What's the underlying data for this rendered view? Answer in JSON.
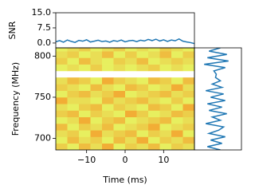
{
  "chart_data": [
    {
      "type": "line",
      "ylabel": "SNR",
      "color": "#1f77b4",
      "x": [
        -18,
        -17,
        -16,
        -15,
        -14,
        -13,
        -12,
        -11,
        -10,
        -9,
        -8,
        -7,
        -6,
        -5,
        -4,
        -3,
        -2,
        -1,
        0,
        1,
        2,
        3,
        4,
        5,
        6,
        7,
        8,
        9,
        10,
        11,
        12,
        13,
        14,
        15,
        16,
        17,
        18
      ],
      "values": [
        0.6,
        1.2,
        0.4,
        1.5,
        0.8,
        0.3,
        1.3,
        0.9,
        1.6,
        0.5,
        0.9,
        1.4,
        0.7,
        1.0,
        0.4,
        1.2,
        0.8,
        1.5,
        0.6,
        1.1,
        1.3,
        0.7,
        1.4,
        1.0,
        1.8,
        1.2,
        1.9,
        1.0,
        1.6,
        0.8,
        1.5,
        1.1,
        2.0,
        0.9,
        0.5,
        0.2,
        -0.3
      ],
      "xlim": [
        -18,
        18
      ],
      "ylim": [
        -2.4,
        15
      ],
      "yticks": [
        {
          "value": 0,
          "label": "0.0"
        },
        7.5,
        {
          "value": 15,
          "label": "15.0"
        }
      ]
    },
    {
      "type": "heatmap",
      "xlabel": "Time (ms)",
      "ylabel": "Frequency (MHz)",
      "x_bins": [
        -18,
        -15,
        -12,
        -9,
        -6,
        -3,
        0,
        3,
        6,
        9,
        12,
        15,
        18
      ],
      "y_bins": [
        686,
        694,
        702,
        710,
        718,
        726,
        734,
        742,
        750,
        758,
        766,
        774,
        782,
        790,
        798,
        806,
        810
      ],
      "colors": [
        "#e4ff6a",
        "#ff5a00"
      ],
      "zlim": [
        0,
        1
      ],
      "z": [
        [
          0.3,
          0.1,
          0.4,
          0.2,
          0.5,
          0.1,
          0.3,
          0.2,
          0.4,
          0.1,
          0.3,
          0.2
        ],
        [
          0.1,
          0.4,
          0.2,
          0.3,
          0.1,
          0.4,
          0.2,
          0.5,
          0.1,
          0.3,
          0.2,
          0.4
        ],
        [
          0.2,
          0.3,
          0.1,
          0.5,
          0.2,
          0.3,
          0.4,
          0.1,
          0.3,
          0.2,
          0.5,
          0.1
        ],
        [
          0.4,
          0.1,
          0.3,
          0.2,
          0.4,
          0.1,
          0.2,
          0.3,
          0.5,
          0.1,
          0.2,
          0.3
        ],
        [
          0.1,
          0.2,
          0.5,
          0.1,
          0.3,
          0.4,
          0.1,
          0.2,
          0.3,
          0.4,
          0.1,
          0.2
        ],
        [
          0.3,
          0.4,
          0.1,
          0.3,
          0.2,
          0.1,
          0.5,
          0.3,
          0.1,
          0.2,
          0.4,
          0.3
        ],
        [
          0.2,
          0.1,
          0.3,
          0.4,
          0.1,
          0.3,
          0.2,
          0.1,
          0.4,
          0.3,
          0.1,
          0.5
        ],
        [
          0.5,
          0.2,
          0.2,
          0.1,
          0.4,
          0.2,
          0.3,
          0.4,
          0.2,
          0.1,
          0.3,
          0.1
        ],
        [
          0.1,
          0.3,
          0.4,
          0.2,
          0.3,
          0.5,
          0.1,
          0.2,
          0.3,
          0.4,
          0.2,
          0.3
        ],
        [
          0.3,
          0.2,
          0.1,
          0.4,
          0.2,
          0.1,
          0.4,
          0.3,
          0.1,
          0.2,
          0.5,
          0.2
        ],
        [
          0.2,
          0.4,
          0.3,
          0.1,
          0.5,
          0.3,
          0.2,
          0.1,
          0.4,
          0.3,
          0.1,
          0.4
        ],
        [
          null,
          null,
          null,
          null,
          null,
          null,
          null,
          null,
          null,
          null,
          null,
          null
        ],
        [
          0.1,
          0.2,
          0.1,
          0.3,
          0.1,
          0.2,
          0.1,
          0.2,
          0.3,
          0.1,
          0.2,
          0.1
        ],
        [
          0.3,
          0.1,
          0.4,
          0.2,
          0.1,
          0.3,
          0.2,
          0.4,
          0.1,
          0.2,
          0.3,
          0.2
        ],
        [
          0.2,
          0.3,
          0.1,
          0.2,
          0.4,
          0.1,
          0.3,
          0.1,
          0.2,
          0.4,
          0.1,
          0.3
        ],
        [
          0.1,
          0.2,
          0.3,
          0.1,
          0.2,
          0.3,
          0.1,
          0.2,
          0.1,
          0.3,
          0.2,
          0.1
        ]
      ],
      "xlim": [
        -18,
        18
      ],
      "ylim": [
        686,
        810
      ],
      "xticks": [
        {
          "value": -10,
          "label": "−10"
        },
        0,
        10
      ],
      "yticks": [
        700,
        750,
        800
      ]
    },
    {
      "type": "spectrum",
      "color": "#1f77b4",
      "x": [
        686,
        690,
        694,
        698,
        702,
        706,
        710,
        714,
        718,
        722,
        726,
        730,
        734,
        738,
        742,
        746,
        750,
        754,
        758,
        762,
        766,
        770,
        774,
        778,
        782,
        786,
        790,
        794,
        798,
        802,
        806,
        810
      ],
      "values": [
        0.3,
        -0.5,
        0.4,
        -0.3,
        0.6,
        -0.4,
        0.2,
        0.5,
        -0.6,
        0.3,
        -0.2,
        0.7,
        -0.4,
        0.4,
        -0.5,
        0.6,
        -0.3,
        0.5,
        -0.6,
        0.4,
        -0.2,
        0.3,
        0.0,
        0.05,
        -0.1,
        0.6,
        -0.7,
        0.8,
        -0.5,
        0.7,
        -0.4,
        0.3
      ],
      "xlim": [
        -1.3,
        1.6
      ],
      "ylim": [
        686,
        810
      ]
    }
  ]
}
